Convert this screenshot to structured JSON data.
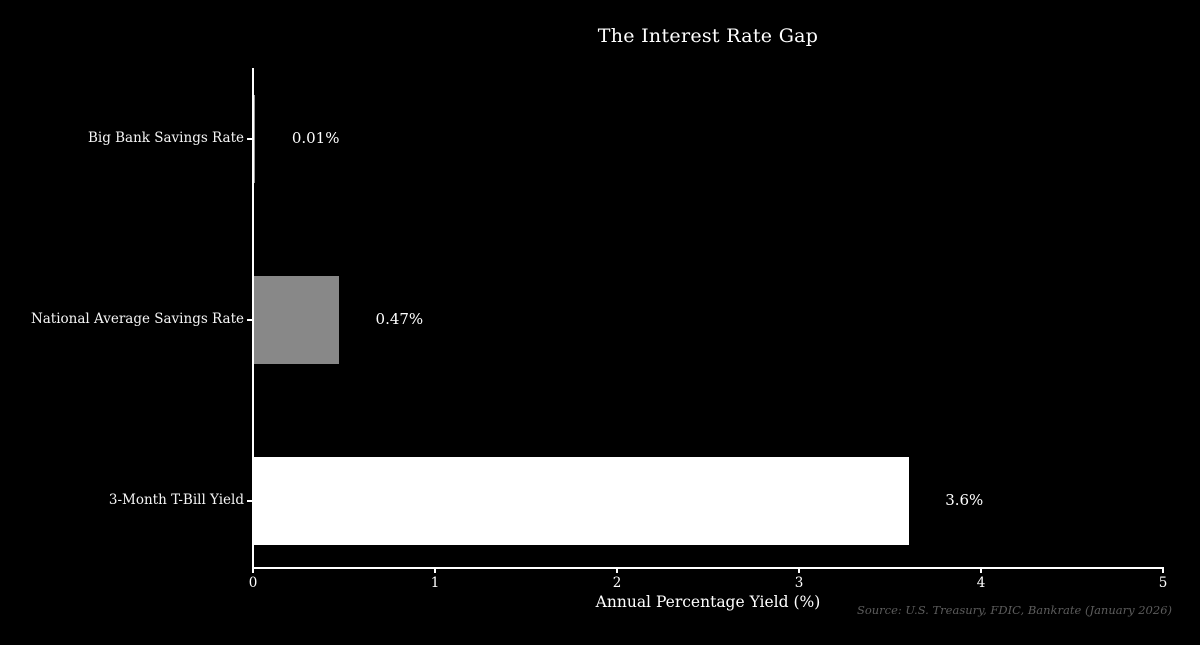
{
  "chart_data": {
    "type": "bar",
    "orientation": "horizontal",
    "title": "The Interest Rate Gap",
    "xlabel": "Annual Percentage Yield (%)",
    "categories": [
      "Big Bank Savings Rate",
      "National Average Savings Rate",
      "3-Month T-Bill Yield"
    ],
    "values": [
      0.01,
      0.47,
      3.6
    ],
    "value_labels": [
      "0.01%",
      "0.47%",
      "3.6%"
    ],
    "bar_colors": [
      "#999999",
      "#888888",
      "#ffffff"
    ],
    "xlim": [
      0,
      5
    ],
    "x_ticks": [
      "0",
      "1",
      "2",
      "3",
      "4",
      "5"
    ],
    "grid": false,
    "legend": "none",
    "source_note": "Source: U.S. Treasury, FDIC, Bankrate (January 2026)",
    "colors": {
      "background": "#000000",
      "axis": "#ffffff",
      "text": "#ffffff",
      "source_text": "#5c5c5c"
    }
  }
}
